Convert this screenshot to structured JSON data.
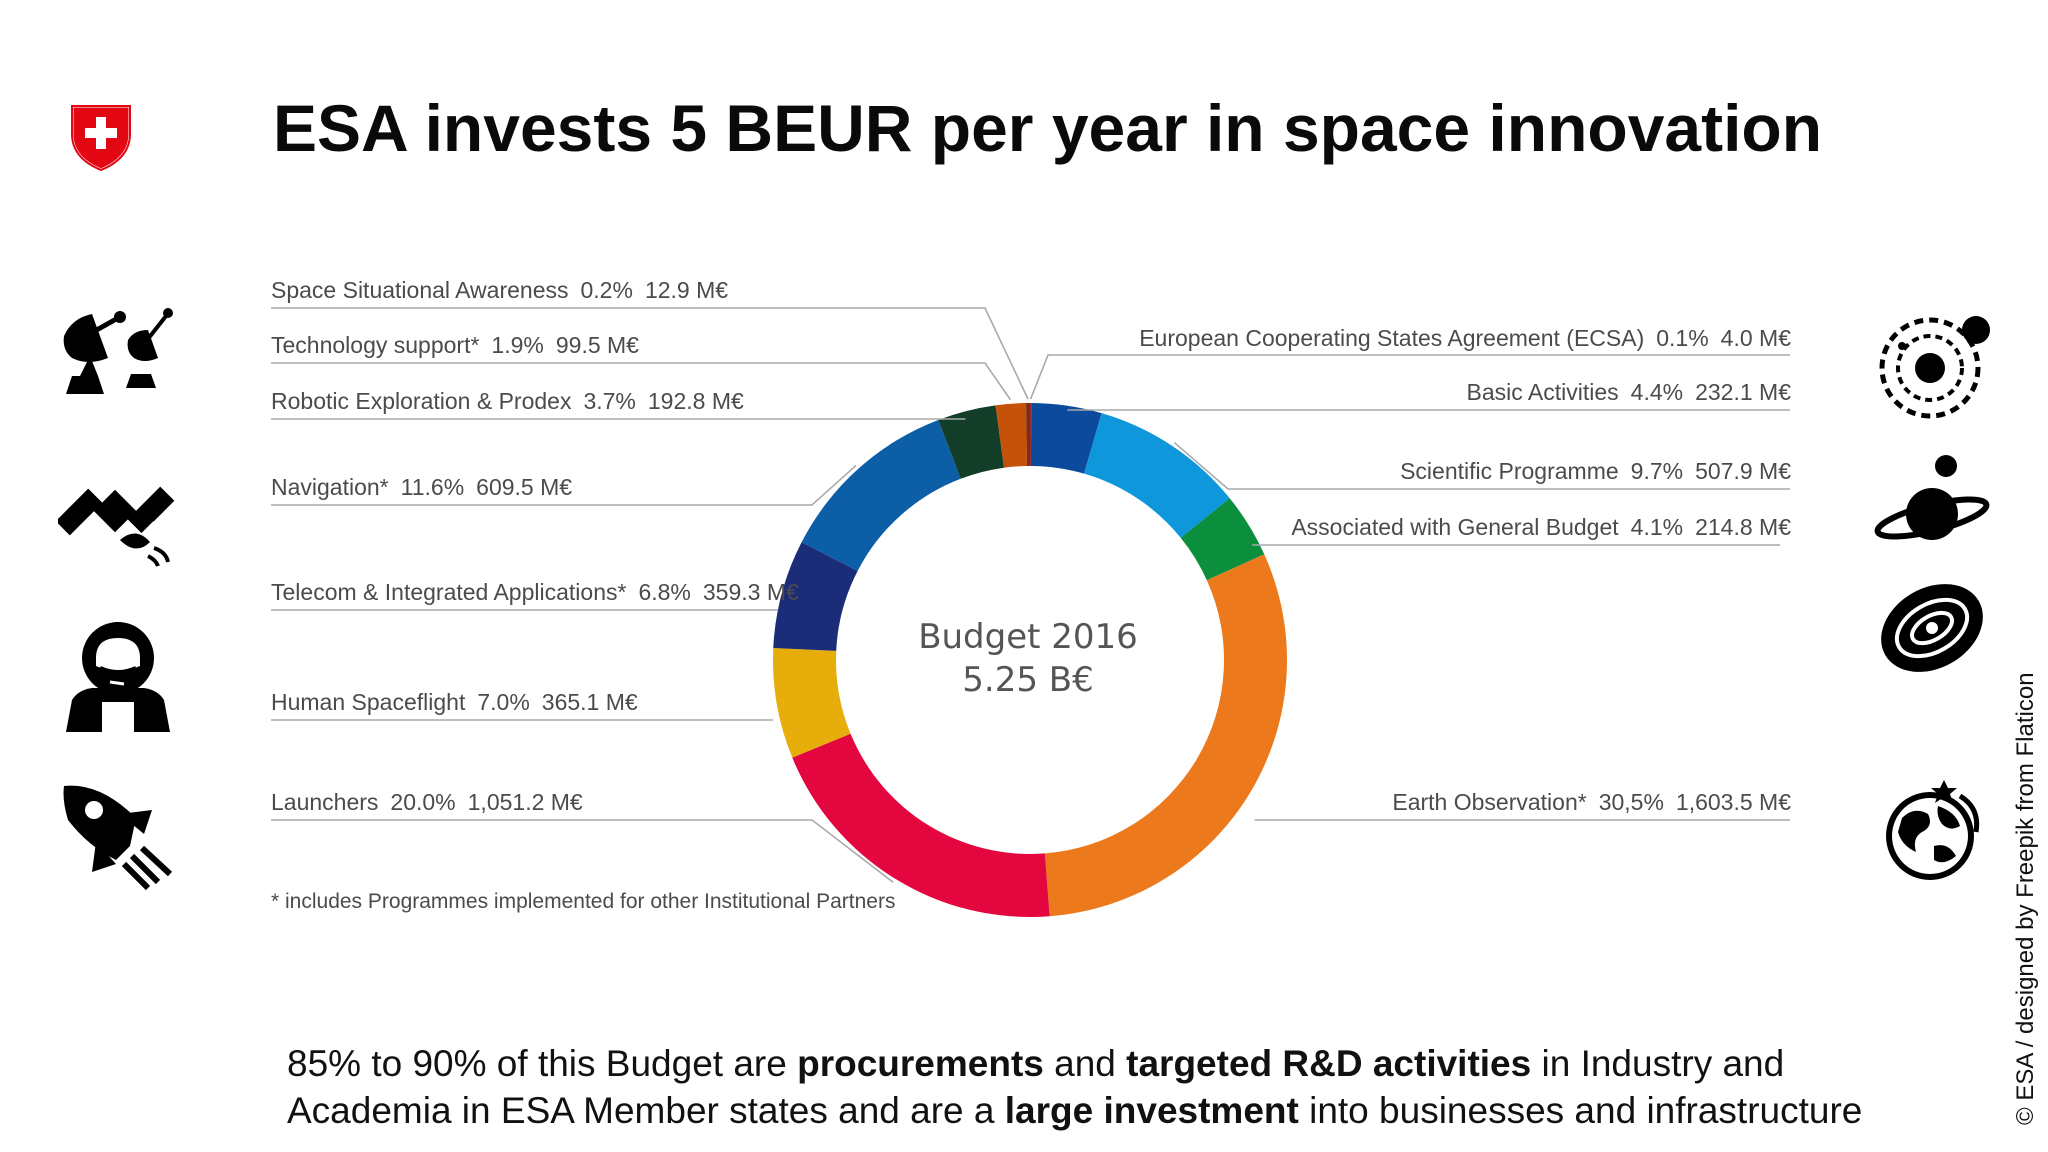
{
  "title": "ESA invests 5 BEUR per year in space innovation",
  "chart_data": {
    "type": "pie",
    "style": "donut",
    "center_line1": "Budget 2016",
    "center_line2": "5.25 B€",
    "slices": [
      {
        "name": "European Cooperating States Agreement (ECSA)",
        "percent_label": "0.1%",
        "amount_label": "4.0 M€",
        "value": 4.0,
        "color": "#9e2a2f"
      },
      {
        "name": "Basic Activities",
        "percent_label": "4.4%",
        "amount_label": "232.1 M€",
        "value": 232.1,
        "color": "#0b4a9c"
      },
      {
        "name": "Scientific Programme",
        "percent_label": "9.7%",
        "amount_label": "507.9 M€",
        "value": 507.9,
        "color": "#0f97dc"
      },
      {
        "name": "Associated with General Budget",
        "percent_label": "4.1%",
        "amount_label": "214.8 M€",
        "value": 214.8,
        "color": "#0b8f3c"
      },
      {
        "name": "Earth Observation*",
        "percent_label": "30,5%",
        "amount_label": "1,603.5 M€",
        "value": 1603.5,
        "color": "#ec7a1c"
      },
      {
        "name": "Launchers",
        "percent_label": "20.0%",
        "amount_label": "1,051.2 M€",
        "value": 1051.2,
        "color": "#e4063e"
      },
      {
        "name": "Human Spaceflight",
        "percent_label": "7.0%",
        "amount_label": "365.1 M€",
        "value": 365.1,
        "color": "#e6ad0b"
      },
      {
        "name": "Telecom & Integrated Applications*",
        "percent_label": "6.8%",
        "amount_label": "359.3 M€",
        "value": 359.3,
        "color": "#1b2d79"
      },
      {
        "name": "Navigation*",
        "percent_label": "11.6%",
        "amount_label": "609.5 M€",
        "value": 609.5,
        "color": "#0c5ea6"
      },
      {
        "name": "Robotic Exploration & Prodex",
        "percent_label": "3.7%",
        "amount_label": "192.8 M€",
        "value": 192.8,
        "color": "#123d28"
      },
      {
        "name": "Technology support*",
        "percent_label": "1.9%",
        "amount_label": "99.5 M€",
        "value": 99.5,
        "color": "#c65109"
      },
      {
        "name": "Space Situational Awareness",
        "percent_label": "0.2%",
        "amount_label": "12.9 M€",
        "value": 12.9,
        "color": "#7a2e17"
      }
    ],
    "legend": "callout labels around the donut",
    "footnote": "* includes Programmes implemented for other Institutional Partners"
  },
  "bottom_text": {
    "line1_a": "85% to 90% of this Budget are ",
    "line1_b": "procurements",
    "line1_c": " and ",
    "line1_d": "targeted R&D activities",
    "line1_e": " in Industry and",
    "line2_a": "Academia in ESA Member states and are a ",
    "line2_b": "large investment",
    "line2_c": " into businesses and infrastructure"
  },
  "credit": "© ESA / designed by Freepik from Flaticon",
  "icons": {
    "logo": "swiss-shield-icon",
    "left": [
      "satellite-dish-icon",
      "satellite-icon",
      "astronaut-icon",
      "rocket-icon"
    ],
    "right": [
      "solar-system-icon",
      "planet-icon",
      "galaxy-icon",
      "earth-orbit-icon"
    ]
  }
}
